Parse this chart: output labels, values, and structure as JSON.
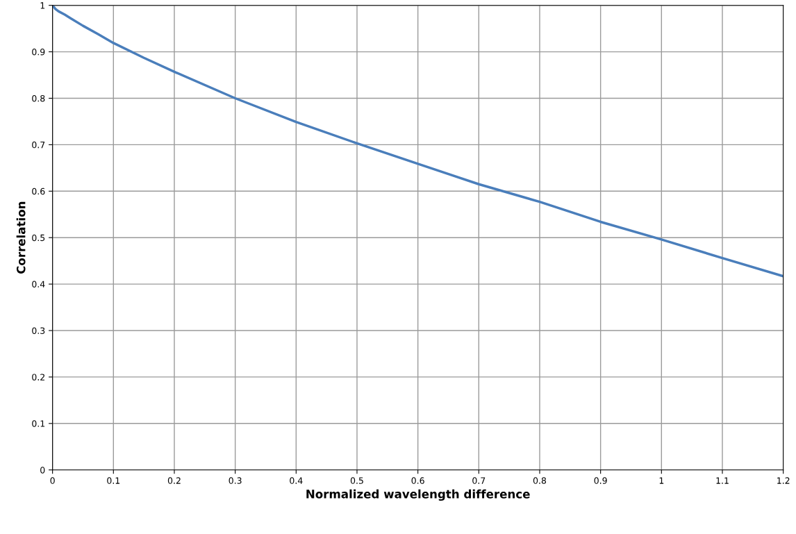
{
  "chart_data": {
    "type": "line",
    "xlabel": "Normalized wavelength difference",
    "ylabel": "Correlation",
    "x": [
      0,
      0.005,
      0.01,
      0.02,
      0.03,
      0.05,
      0.075,
      0.1,
      0.15,
      0.2,
      0.3,
      0.4,
      0.5,
      0.6,
      0.7,
      0.8,
      0.9,
      1.0,
      1.1,
      1.2
    ],
    "series": [
      {
        "color": "#4a7ebb",
        "values": [
          1.0,
          0.992,
          0.987,
          0.98,
          0.972,
          0.956,
          0.938,
          0.919,
          0.887,
          0.857,
          0.8,
          0.749,
          0.703,
          0.659,
          0.615,
          0.577,
          0.534,
          0.496,
          0.456,
          0.417
        ]
      }
    ],
    "xlim": [
      0,
      1.2
    ],
    "ylim": [
      0,
      1
    ],
    "xticks": [
      0,
      0.1,
      0.2,
      0.3,
      0.4,
      0.5,
      0.6,
      0.7,
      0.8,
      0.9,
      1,
      1.1,
      1.2
    ],
    "yticks": [
      0,
      0.1,
      0.2,
      0.3,
      0.4,
      0.5,
      0.6,
      0.7,
      0.8,
      0.9,
      1
    ],
    "grid": true,
    "legend": false
  }
}
